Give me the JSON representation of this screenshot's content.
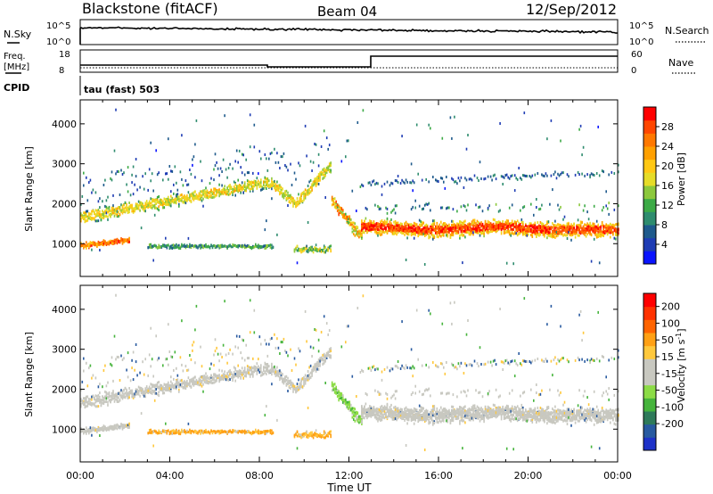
{
  "header": {
    "title": "Blackstone (fitACF)",
    "beam": "Beam 04",
    "date": "12/Sep/2012"
  },
  "top_panels": {
    "nsky_label": "N.Sky",
    "nsearch_label": "N.Search",
    "nsky_ticks": [
      "10^5",
      "10^0"
    ],
    "nsearch_ticks": [
      "10^5",
      "10^0"
    ],
    "freq_label_1": "Freq.",
    "freq_label_2": "[MHz]",
    "freq_ticks": [
      "18",
      "8"
    ],
    "nave_label": "Nave",
    "nave_ticks": [
      "60",
      "0"
    ],
    "cpid_label": "CPID",
    "cpid_value": "tau (fast) 503"
  },
  "chart_data": [
    {
      "type": "heatmap",
      "title": "",
      "xlabel": "Time UT",
      "ylabel": "Slant Range [km]",
      "xlim": [
        0,
        24
      ],
      "ylim": [
        180,
        4600
      ],
      "x_ticks": [
        "00:00",
        "04:00",
        "08:00",
        "12:00",
        "16:00",
        "20:00",
        "00:00"
      ],
      "y_ticks": [
        1000,
        2000,
        3000,
        4000
      ],
      "colorbar": {
        "label": "Power [dB]",
        "ticks": [
          4,
          8,
          12,
          16,
          20,
          24,
          28
        ],
        "range": [
          0,
          32
        ],
        "colors": [
          "#0a14ff",
          "#1e3cb4",
          "#1e5a8c",
          "#2e8c6e",
          "#3caa46",
          "#8cc83c",
          "#e6dc28",
          "#ffc814",
          "#ffa000",
          "#ff7800",
          "#ff4600",
          "#ff0000"
        ]
      },
      "features": [
        {
          "name": "lower band",
          "time_h": [
            0.0,
            8.5
          ],
          "range_km": [
            900,
            1000
          ]
        },
        {
          "name": "main band",
          "time_h": [
            12.5,
            24.0
          ],
          "range_km": [
            1200,
            1700
          ],
          "peak_dB": 28
        },
        {
          "name": "rising arc",
          "time_h": [
            0.5,
            11.0
          ],
          "range_km": [
            1500,
            3000
          ]
        }
      ]
    },
    {
      "type": "heatmap",
      "title": "",
      "xlabel": "Time UT",
      "ylabel": "Slant Range [km]",
      "xlim": [
        0,
        24
      ],
      "ylim": [
        180,
        4600
      ],
      "x_ticks": [
        "00:00",
        "04:00",
        "08:00",
        "12:00",
        "16:00",
        "20:00",
        "00:00"
      ],
      "y_ticks": [
        1000,
        2000,
        3000,
        4000
      ],
      "colorbar": {
        "label": "Velocity [m s^-1]",
        "ticks": [
          "200",
          "100",
          "50",
          "15",
          "-15",
          "-50",
          "-100",
          "-200"
        ],
        "colors": [
          "#1e32c8",
          "#285aa0",
          "#2e7a5a",
          "#46b43c",
          "#8cdc46",
          "#c8c8c0",
          "#c8c8c0",
          "#ffc83c",
          "#ffa014",
          "#ff6400",
          "#ff3200",
          "#ff0000"
        ]
      }
    }
  ],
  "colors": {
    "ground_scatter": "#c8c8c0",
    "axis": "#000000"
  }
}
